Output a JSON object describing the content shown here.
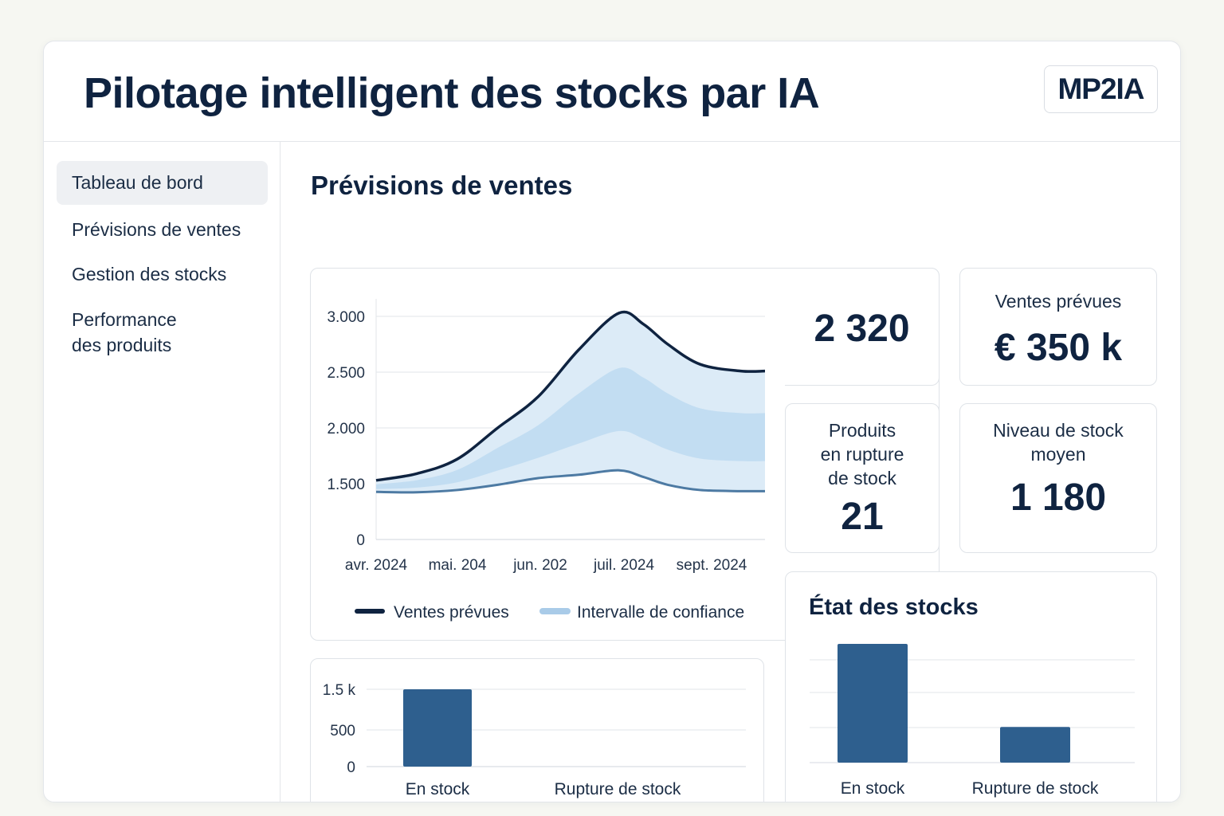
{
  "header": {
    "title": "Pilotage intelligent des stocks par IA",
    "logo_text": "MP2IA"
  },
  "sidebar": {
    "items": [
      {
        "label": "Tableau de bord",
        "active": true
      },
      {
        "label": "Prévisions de ventes"
      },
      {
        "label": "Gestion des stocks"
      },
      {
        "label": "Performance",
        "label2": "des produits"
      }
    ]
  },
  "main": {
    "section_title": "Prévisions de ventes"
  },
  "kpis": {
    "total": {
      "value": "2 320"
    },
    "ventes": {
      "label": "Ventes prévues",
      "value": "€ 350 k"
    },
    "rupture": {
      "label1": "Produits",
      "label2": "en rupture",
      "label3": "de stock",
      "value": "21"
    },
    "niveau": {
      "label1": "Niveau de stock",
      "label2": "moyen",
      "value": "1 180"
    }
  },
  "colors": {
    "navy": "#0f2340",
    "bar": "#2e5f8e",
    "band_outer": "#dcebf7",
    "band_inner": "#b9d8f0",
    "lower_line": "#4d7aa3"
  },
  "chart_data": [
    {
      "type": "area",
      "y_ticks": [
        "3.000",
        "2.500",
        "2.000",
        "1.500",
        "0"
      ],
      "y_tick_values": [
        3000,
        2500,
        2000,
        1500,
        0
      ],
      "x_ticks": [
        "avr. 2024",
        "mai. 204",
        "jun. 202",
        "juil. 2024",
        "sept. 2024"
      ],
      "x": [
        0,
        0.5,
        1,
        1.5,
        2,
        2.5,
        3,
        3.3,
        3.6,
        4,
        4.5,
        4.8
      ],
      "series": [
        {
          "name": "Ventes prévues",
          "values": [
            1530,
            1590,
            1720,
            2000,
            2280,
            2700,
            3030,
            2930,
            2750,
            2570,
            2510,
            2510
          ]
        },
        {
          "name": "Intervalle de confiance",
          "values_low": [
            1280,
            1270,
            1330,
            1470,
            1550,
            1580,
            1620,
            1560,
            1470,
            1330,
            1300,
            1300
          ],
          "values_high": [
            1530,
            1590,
            1720,
            2000,
            2280,
            2700,
            3030,
            2930,
            2750,
            2570,
            2510,
            2510
          ]
        }
      ],
      "legend": [
        "Ventes prévues",
        "Intervalle de confiance"
      ],
      "legend_position": "bottom"
    },
    {
      "type": "bar",
      "categories": [
        "En stock",
        "Rupture de stock"
      ],
      "values": [
        1500,
        0
      ],
      "y_ticks": [
        "1.5 k",
        "500",
        "0"
      ],
      "y_tick_values": [
        1500,
        500,
        0
      ]
    },
    {
      "type": "bar",
      "title": "État des stocks",
      "categories": [
        "En stock",
        "Rupture de stock"
      ],
      "values": [
        1500,
        450
      ]
    }
  ]
}
